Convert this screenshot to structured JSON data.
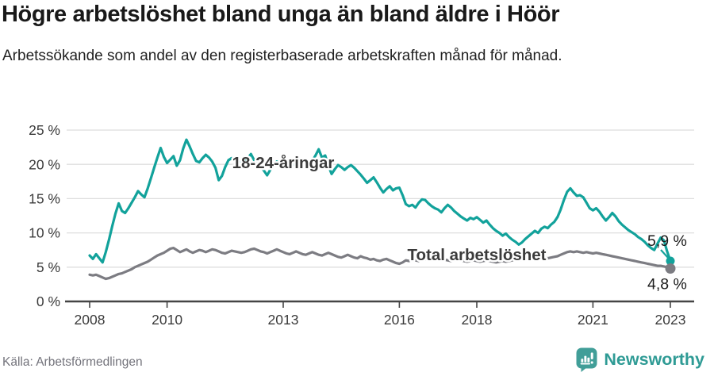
{
  "header": {
    "title": "Högre arbetslöshet bland unga än bland äldre i Höör",
    "subtitle": "Arbetssökande som andel av den registerbaserade arbetskraften månad för månad."
  },
  "chart_data": {
    "type": "line",
    "x_start": "2008-01",
    "x_end": "2023-01",
    "x_interval": "monthly",
    "ylim": [
      0,
      25
    ],
    "ytick_values": [
      0,
      5,
      10,
      15,
      20,
      25
    ],
    "ytick_labels": [
      "0 %",
      "5 %",
      "10 %",
      "15 %",
      "20 %",
      "25 %"
    ],
    "xtick_values": [
      2008,
      2010,
      2013,
      2016,
      2018,
      2021,
      2023
    ],
    "xtick_labels": [
      "2008",
      "2010",
      "2013",
      "2016",
      "2018",
      "2021",
      "2023"
    ],
    "grid": "horizontal",
    "legend": "inline-labels",
    "colors": {
      "grid": "#dedede",
      "axis": "#454545",
      "tick_text": "#3b3b3b"
    },
    "series": [
      {
        "name": "18-24-åringar",
        "color": "#12a29b",
        "end_label": "5,9 %",
        "end_value": 5.9,
        "values": [
          6.7,
          6.2,
          6.9,
          6.3,
          5.7,
          7.2,
          9.0,
          11.0,
          12.8,
          14.3,
          13.2,
          12.9,
          13.6,
          14.4,
          15.2,
          16.1,
          15.6,
          15.2,
          16.5,
          18.0,
          19.5,
          21.0,
          22.4,
          21.1,
          20.2,
          20.7,
          21.2,
          19.8,
          20.6,
          22.3,
          23.6,
          22.6,
          21.5,
          20.5,
          20.3,
          20.9,
          21.4,
          21.0,
          20.4,
          19.5,
          17.7,
          18.3,
          19.6,
          20.6,
          20.9,
          20.4,
          20.8,
          20.4,
          20.3,
          20.9,
          21.5,
          20.6,
          20.1,
          19.7,
          19.1,
          18.4,
          19.2,
          19.9,
          20.4,
          20.1,
          19.8,
          20.2,
          20.6,
          20.1,
          19.7,
          19.4,
          19.8,
          20.3,
          19.9,
          20.5,
          21.3,
          22.2,
          21.0,
          21.3,
          19.8,
          18.6,
          19.3,
          19.9,
          19.6,
          19.2,
          19.6,
          19.9,
          19.5,
          19.0,
          18.5,
          17.9,
          17.3,
          17.7,
          18.1,
          17.4,
          16.6,
          15.9,
          16.4,
          16.8,
          16.2,
          16.5,
          16.6,
          15.5,
          14.2,
          13.9,
          14.1,
          13.7,
          14.4,
          14.9,
          14.8,
          14.3,
          13.9,
          13.6,
          13.4,
          13.0,
          13.6,
          14.1,
          13.7,
          13.2,
          12.8,
          12.4,
          12.1,
          11.8,
          12.2,
          12.0,
          12.3,
          11.9,
          11.5,
          11.8,
          11.2,
          10.7,
          10.3,
          10.0,
          9.6,
          9.9,
          9.4,
          9.0,
          8.7,
          8.3,
          8.6,
          9.1,
          9.5,
          9.9,
          10.3,
          10.0,
          10.6,
          10.9,
          10.7,
          11.2,
          11.6,
          12.3,
          13.4,
          14.8,
          16.0,
          16.5,
          15.9,
          15.4,
          15.5,
          15.2,
          14.4,
          13.6,
          13.3,
          13.6,
          13.1,
          12.4,
          11.8,
          12.3,
          12.9,
          12.4,
          11.7,
          11.2,
          10.8,
          10.4,
          10.1,
          9.8,
          9.4,
          9.1,
          8.7,
          8.2,
          7.8,
          7.5,
          8.4,
          9.3,
          8.9,
          7.3,
          5.9
        ]
      },
      {
        "name": "Total arbetslöshet",
        "color": "#7c7c82",
        "end_label": "4,8 %",
        "end_value": 4.8,
        "values": [
          3.9,
          3.8,
          3.9,
          3.7,
          3.5,
          3.3,
          3.4,
          3.6,
          3.8,
          4.0,
          4.1,
          4.3,
          4.5,
          4.7,
          5.0,
          5.2,
          5.4,
          5.6,
          5.8,
          6.1,
          6.4,
          6.7,
          6.9,
          7.1,
          7.4,
          7.7,
          7.8,
          7.5,
          7.2,
          7.4,
          7.6,
          7.3,
          7.1,
          7.3,
          7.5,
          7.4,
          7.2,
          7.4,
          7.6,
          7.5,
          7.3,
          7.1,
          7.0,
          7.2,
          7.4,
          7.3,
          7.2,
          7.1,
          7.2,
          7.4,
          7.6,
          7.7,
          7.5,
          7.3,
          7.2,
          7.0,
          7.2,
          7.4,
          7.6,
          7.4,
          7.2,
          7.0,
          6.9,
          7.1,
          7.3,
          7.1,
          6.9,
          6.8,
          7.0,
          7.2,
          7.0,
          6.8,
          6.7,
          6.9,
          7.1,
          6.9,
          6.7,
          6.5,
          6.4,
          6.6,
          6.8,
          6.6,
          6.4,
          6.3,
          6.6,
          6.4,
          6.3,
          6.1,
          6.2,
          6.0,
          5.9,
          6.1,
          6.2,
          6.0,
          5.8,
          5.6,
          5.5,
          5.7,
          6.0,
          5.9,
          6.1,
          6.0,
          5.9,
          6.1,
          6.2,
          6.1,
          6.0,
          6.1,
          6.1,
          6.2,
          6.1,
          6.0,
          5.9,
          6.0,
          6.1,
          6.0,
          5.9,
          5.8,
          5.9,
          6.0,
          5.9,
          5.8,
          5.9,
          6.0,
          5.9,
          5.8,
          5.7,
          5.8,
          5.9,
          5.8,
          5.9,
          6.0,
          6.1,
          6.0,
          6.1,
          6.2,
          6.1,
          6.2,
          6.3,
          6.2,
          6.3,
          6.4,
          6.3,
          6.4,
          6.5,
          6.6,
          6.8,
          7.0,
          7.2,
          7.3,
          7.2,
          7.3,
          7.2,
          7.1,
          7.2,
          7.1,
          7.0,
          7.1,
          7.0,
          6.9,
          6.8,
          6.7,
          6.6,
          6.5,
          6.4,
          6.3,
          6.2,
          6.1,
          6.0,
          5.9,
          5.8,
          5.7,
          5.6,
          5.5,
          5.4,
          5.3,
          5.2,
          5.2,
          5.1,
          5.0,
          4.8
        ]
      }
    ]
  },
  "footer": {
    "source": "Källa: Arbetsförmedlingen",
    "brand": "Newsworthy",
    "brand_color": "#2f9b95",
    "brand_icon_color": "#419e98"
  }
}
